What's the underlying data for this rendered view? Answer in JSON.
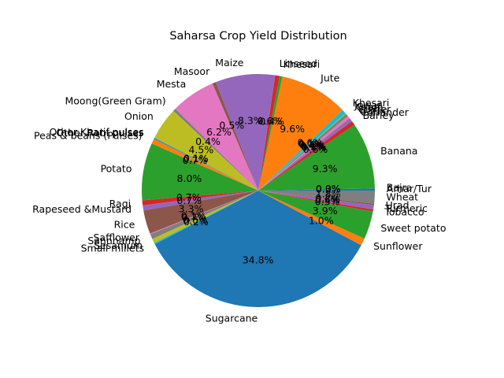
{
  "chart_data": {
    "type": "pie",
    "title": "Saharsa Crop Yield Distribution",
    "start_angle_deg": 0,
    "direction": "counterclockwise",
    "autopct_format": "%.1f%%",
    "slices": [
      {
        "label": "Arhar/Tur",
        "value": 0.3,
        "color": "#1f77b4"
      },
      {
        "label": "Bajra",
        "value": 0.0,
        "color": "#ff7f0e"
      },
      {
        "label": "Banana",
        "value": 9.3,
        "color": "#2ca02c"
      },
      {
        "label": "Barley",
        "value": 0.6,
        "color": "#d62728"
      },
      {
        "label": "Coriander",
        "value": 0.4,
        "color": "#9467bd"
      },
      {
        "label": "Garlic",
        "value": 0.1,
        "color": "#8c564b"
      },
      {
        "label": "Ginger",
        "value": 0.4,
        "color": "#e377c2"
      },
      {
        "label": "Gram",
        "value": 0.4,
        "color": "#7f7f7f"
      },
      {
        "label": "Jowar",
        "value": 0.1,
        "color": "#bcbd22"
      },
      {
        "label": "Khesari",
        "value": 0.6,
        "color": "#17becf"
      },
      {
        "label": "Jute",
        "value": 9.6,
        "color": "#ff7f0e"
      },
      {
        "label": "Khesari",
        "value": 0.4,
        "color": "#2ca02c"
      },
      {
        "label": "Linseed",
        "value": 0.6,
        "color": "#d62728"
      },
      {
        "label": "Maize",
        "value": 8.3,
        "color": "#9467bd"
      },
      {
        "label": "Masoor",
        "value": 0.5,
        "color": "#8c564b"
      },
      {
        "label": "Mesta",
        "value": 6.2,
        "color": "#e377c2"
      },
      {
        "label": "Moong(Green Gram)",
        "value": 0.4,
        "color": "#7f7f7f"
      },
      {
        "label": "Onion",
        "value": 4.5,
        "color": "#bcbd22"
      },
      {
        "label": "Other Kharif pulses",
        "value": 0.1,
        "color": "#17becf"
      },
      {
        "label": "Other Rabi pulses",
        "value": 0.1,
        "color": "#1f77b4"
      },
      {
        "label": "Peas & beans (Pulses)",
        "value": 0.7,
        "color": "#ff7f0e"
      },
      {
        "label": "Potato",
        "value": 8.0,
        "color": "#2ca02c"
      },
      {
        "label": "Ragi",
        "value": 0.7,
        "color": "#d62728"
      },
      {
        "label": "Rapeseed &Mustard",
        "value": 0.7,
        "color": "#9467bd"
      },
      {
        "label": "Rice",
        "value": 3.3,
        "color": "#8c564b"
      },
      {
        "label": "Safflower",
        "value": 0.1,
        "color": "#e377c2"
      },
      {
        "label": "Sannhamp",
        "value": 0.7,
        "color": "#7f7f7f"
      },
      {
        "label": "Sesamum",
        "value": 0.6,
        "color": "#bcbd22"
      },
      {
        "label": "Small millets",
        "value": 0.2,
        "color": "#17becf"
      },
      {
        "label": "Sugarcane",
        "value": 34.8,
        "color": "#1f77b4"
      },
      {
        "label": "Sunflower",
        "value": 1.0,
        "color": "#ff7f0e"
      },
      {
        "label": "Sweet potato",
        "value": 3.9,
        "color": "#2ca02c"
      },
      {
        "label": "Tobacco",
        "value": 0.3,
        "color": "#d62728"
      },
      {
        "label": "Turmeric",
        "value": 0.6,
        "color": "#9467bd"
      },
      {
        "label": "Urad",
        "value": 0.2,
        "color": "#8c564b"
      },
      {
        "label": "Wheat",
        "value": 1.8,
        "color": "#7f7f7f"
      }
    ]
  }
}
